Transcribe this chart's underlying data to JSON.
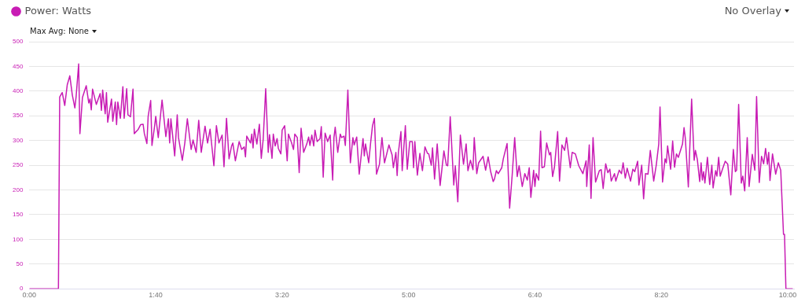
{
  "chart_data": {
    "type": "line",
    "legend": "top left",
    "grid": "y",
    "marker": "none",
    "line_style": "solid",
    "annotations": [
      "No Overlay",
      "Max Avg: None"
    ],
    "xlim": [
      0,
      605
    ],
    "xticks": [
      {
        "value": 0,
        "label": "0:00"
      },
      {
        "value": 100,
        "label": "1:40"
      },
      {
        "value": 200,
        "label": "3:20"
      },
      {
        "value": 300,
        "label": "5:00"
      },
      {
        "value": 400,
        "label": "6:40"
      },
      {
        "value": 500,
        "label": "8:20"
      },
      {
        "value": 600,
        "label": "10:00"
      }
    ],
    "ylim": [
      0,
      500
    ],
    "yticks": [
      0,
      50,
      100,
      150,
      200,
      250,
      300,
      350,
      400,
      450,
      500
    ],
    "series": [
      {
        "name": "Power: Watts",
        "color": "#c81cb4",
        "x": [
          0,
          23,
          24,
          26,
          28,
          30,
          32,
          34,
          36,
          37,
          39,
          40,
          42,
          45,
          47,
          48,
          49,
          50,
          53,
          56,
          57,
          58,
          60,
          61,
          62,
          65,
          66,
          68,
          69,
          70,
          72,
          74,
          75,
          77,
          78,
          80,
          82,
          83,
          86,
          88,
          90,
          91,
          93,
          94,
          96,
          97,
          99,
          100,
          102,
          105,
          108,
          110,
          111,
          112,
          115,
          117,
          118,
          121,
          123,
          125,
          128,
          129.5,
          132,
          134,
          136,
          139,
          141,
          143,
          146,
          148,
          150,
          152.5,
          154,
          156,
          158,
          160,
          161,
          163,
          166,
          168,
          170,
          171,
          172,
          175,
          176,
          177,
          178,
          180,
          182,
          183.5,
          185,
          187,
          189,
          190,
          192,
          193,
          194.5,
          196,
          197,
          199,
          200,
          202,
          204,
          205,
          207.5,
          209,
          210,
          212,
          213.5,
          215,
          217,
          219.5,
          221,
          222,
          223.5,
          225,
          226,
          227.7,
          230,
          231,
          232.5,
          234,
          236,
          238,
          240,
          241,
          242,
          244,
          246,
          247,
          249,
          250,
          252,
          254,
          256,
          257,
          259,
          261,
          264,
          265,
          266,
          268.5,
          270,
          271.5,
          273,
          274.7,
          277,
          279,
          281,
          284.5,
          287,
          288,
          290,
          291,
          292,
          294,
          295,
          297.5,
          299,
          301,
          303,
          304,
          305,
          307,
          309,
          311,
          313,
          315,
          316,
          318,
          319,
          320.6,
          322.7,
          325,
          328,
          330,
          331,
          333,
          335.8,
          337,
          339,
          341,
          343.5,
          345.6,
          347,
          349,
          351,
          352,
          354,
          355.5,
          359,
          361,
          363,
          365,
          367,
          368,
          369.5,
          371,
          373.8,
          375,
          378,
          380,
          382,
          384,
          386,
          387.5,
          390,
          392,
          394,
          395.5,
          396.8,
          399,
          400,
          401,
          403,
          404.5,
          405.6,
          407.5,
          409.3,
          411.5,
          412.5,
          414,
          415.5,
          418,
          419.5,
          421.4,
          423.5,
          425,
          428,
          429.5,
          432,
          434.7,
          438,
          440.5,
          441,
          443,
          444.4,
          446,
          448,
          451,
          452.5,
          454,
          456,
          457.7,
          459.3,
          460.4,
          463,
          464,
          466.7,
          468.5,
          469.8,
          471.5,
          473,
          475.7,
          477.5,
          479,
          481.3,
          482.3,
          484.5,
          486,
          487.5,
          489.5,
          491.3,
          494,
          496,
          498,
          499,
          501,
          503,
          504,
          505,
          507.4,
          509,
          510.5,
          512,
          513.5,
          516.8,
          518,
          519,
          521.4,
          524,
          526,
          527,
          528.5,
          530.4,
          531.5,
          532.5,
          533.5,
          534.5,
          536.5,
          538.3,
          540,
          541,
          543,
          544,
          545.4,
          546.6,
          548.8,
          550.6,
          552.6,
          555,
          557,
          558.6,
          559.6,
          561.2,
          563.3,
          564.5,
          566,
          568,
          569.5,
          572,
          574,
          575.4,
          577.5,
          579.3,
          581,
          582.5,
          584,
          585,
          586,
          588,
          590.5,
          592.6,
          594.5,
          596.7,
          597.5,
          598.6,
          604
        ],
        "values": [
          0,
          0,
          388,
          397,
          371,
          413,
          431,
          392,
          366,
          389,
          455,
          314,
          387,
          411,
          376,
          384,
          362,
          404,
          373,
          395,
          361,
          402,
          354,
          397,
          337,
          384,
          339,
          378,
          332,
          378,
          345,
          409,
          345,
          405,
          352,
          348,
          404,
          314,
          322,
          332,
          333,
          314,
          294,
          349,
          381,
          290,
          327,
          349,
          306,
          382,
          308,
          344,
          295,
          344,
          269,
          352,
          306,
          260,
          295,
          344,
          282,
          301,
          276,
          341,
          276,
          329,
          295,
          323,
          249,
          330,
          295,
          311,
          247,
          345,
          263,
          289,
          295,
          259,
          298,
          282,
          287,
          267,
          309,
          295,
          313,
          285,
          323,
          293,
          333,
          264,
          302,
          405,
          276,
          312,
          264,
          313,
          289,
          304,
          284,
          273,
          321,
          330,
          259,
          313,
          295,
          282,
          313,
          306,
          235,
          325,
          276,
          293,
          307,
          290,
          311,
          289,
          321,
          298,
          304,
          328,
          226,
          315,
          298,
          311,
          220,
          306,
          327,
          276,
          313,
          306,
          309,
          290,
          402,
          255,
          306,
          291,
          307,
          232,
          304,
          269,
          293,
          255,
          295,
          330,
          345,
          232,
          252,
          306,
          255,
          291,
          271,
          245,
          276,
          229,
          276,
          318,
          239,
          330,
          242,
          298,
          298,
          245,
          298,
          230,
          274,
          239,
          287,
          274,
          273,
          250,
          285,
          222,
          293,
          209,
          279,
          250,
          249,
          348,
          210,
          249,
          176,
          311,
          252,
          293,
          239,
          260,
          241,
          306,
          233,
          255,
          268,
          240,
          267,
          237,
          217,
          222,
          239,
          233,
          245,
          263,
          294,
          163,
          229,
          306,
          227,
          249,
          207,
          233,
          220,
          245,
          185,
          240,
          207,
          233,
          220,
          319,
          245,
          247,
          295,
          271,
          276,
          227,
          247,
          318,
          218,
          291,
          280,
          306,
          245,
          276,
          273,
          249,
          233,
          259,
          207,
          291,
          183,
          306,
          216,
          239,
          241,
          203,
          253,
          235,
          242,
          218,
          233,
          218,
          240,
          233,
          255,
          224,
          244,
          218,
          242,
          237,
          258,
          210,
          250,
          182,
          233,
          232,
          280,
          218,
          250,
          293,
          368,
          216,
          263,
          255,
          289,
          242,
          299,
          246,
          273,
          266,
          293,
          326,
          305,
          206,
          384,
          260,
          280,
          262,
          217,
          255,
          220,
          237,
          214,
          266,
          211,
          250,
          204,
          239,
          228,
          266,
          228,
          245,
          258,
          252,
          190,
          282,
          237,
          240,
          373,
          214,
          228,
          198,
          306,
          207,
          272,
          240,
          389,
          215,
          268,
          253,
          284,
          252,
          276,
          219,
          273,
          232,
          255,
          240,
          110,
          110,
          0,
          0
        ]
      }
    ]
  }
}
